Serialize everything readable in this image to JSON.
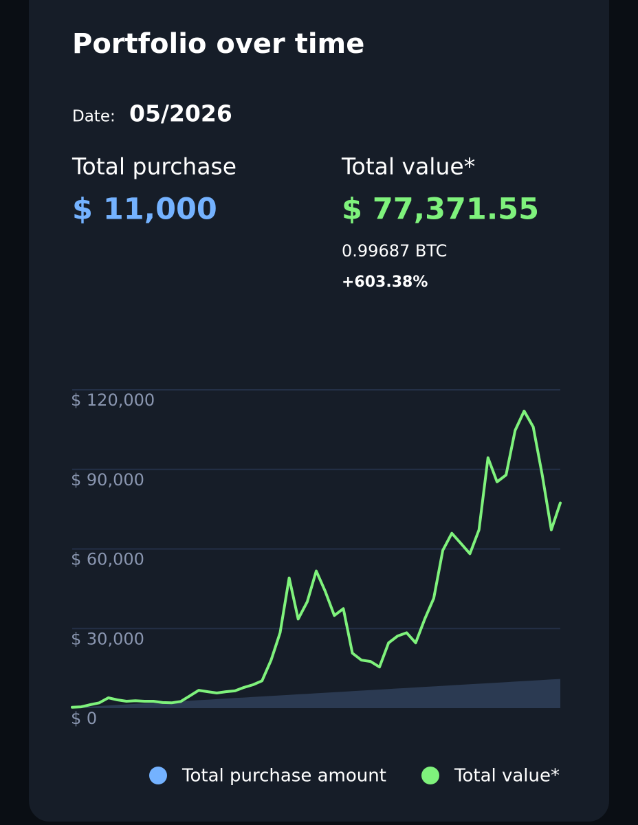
{
  "header": {
    "title": "Portfolio over time",
    "date_label": "Date:",
    "date": "05/2026"
  },
  "stats": {
    "purchase_label": "Total purchase",
    "purchase_value": "$ 11,000",
    "value_label": "Total value*",
    "value_value": "$ 77,371.55",
    "btc": "0.99687 BTC",
    "change": "+603.38%"
  },
  "chart_data": {
    "type": "line",
    "series": [
      {
        "name": "Total purchase amount",
        "color": "#74b2ff",
        "area_color": "#2b3a52",
        "fill": true,
        "values": [
          200,
          400,
          600,
          800,
          1000,
          1200,
          1400,
          1600,
          1800,
          2000,
          2200,
          2400,
          2600,
          2800,
          3000,
          3200,
          3400,
          3600,
          3800,
          4000,
          4200,
          4400,
          4600,
          4800,
          5000,
          5200,
          5400,
          5600,
          5800,
          6000,
          6200,
          6400,
          6600,
          6800,
          7000,
          7200,
          7400,
          7600,
          7800,
          8000,
          8200,
          8400,
          8600,
          8800,
          9000,
          9200,
          9400,
          9600,
          9800,
          10000,
          10200,
          10400,
          10600,
          10800,
          11000
        ]
      },
      {
        "name": "Total value*",
        "color": "#7ff27c",
        "fill": false,
        "values": [
          300,
          500,
          1300,
          2000,
          3900,
          3100,
          2600,
          2800,
          2600,
          2600,
          2100,
          2000,
          2500,
          4600,
          6700,
          6200,
          5700,
          6200,
          6500,
          7800,
          8800,
          10300,
          18100,
          28400,
          49100,
          33600,
          40100,
          51700,
          44000,
          34900,
          37500,
          20700,
          18100,
          17600,
          15500,
          24600,
          27200,
          28400,
          24600,
          33600,
          41400,
          59500,
          65900,
          62100,
          58200,
          67200,
          94400,
          85300,
          87900,
          104700,
          112000,
          106000,
          87900,
          67200,
          77371.55
        ]
      }
    ],
    "ylim": [
      0,
      120000
    ],
    "yticks": [
      {
        "value": 0,
        "label": "$ 0"
      },
      {
        "value": 30000,
        "label": "$ 30,000"
      },
      {
        "value": 60000,
        "label": "$ 60,000"
      },
      {
        "value": 90000,
        "label": "$ 90,000"
      },
      {
        "value": 120000,
        "label": "$ 120,000"
      }
    ],
    "grid": true
  }
}
